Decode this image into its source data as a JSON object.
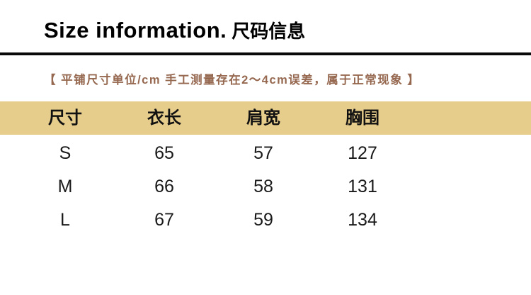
{
  "title": {
    "en": "Size information.",
    "zh": "尺码信息"
  },
  "note": "【 平铺尺寸单位/cm 手工测量存在2～4cm误差，属于正常现象 】",
  "colors": {
    "header_bg": "#e7cd8c",
    "note_text": "#966850",
    "divider": "#0a0a0a"
  },
  "table": {
    "headers": [
      "尺寸",
      "衣长",
      "肩宽",
      "胸围"
    ],
    "rows": [
      {
        "size": "S",
        "length": "65",
        "shoulder": "57",
        "bust": "127"
      },
      {
        "size": "M",
        "length": "66",
        "shoulder": "58",
        "bust": "131"
      },
      {
        "size": "L",
        "length": "67",
        "shoulder": "59",
        "bust": "134"
      }
    ]
  },
  "chart_data": {
    "type": "table",
    "title": "Size information. 尺码信息",
    "note": "平铺尺寸单位/cm 手工测量存在2～4cm误差，属于正常现象",
    "columns": [
      "尺寸",
      "衣长",
      "肩宽",
      "胸围"
    ],
    "rows": [
      [
        "S",
        65,
        57,
        127
      ],
      [
        "M",
        66,
        58,
        131
      ],
      [
        "L",
        67,
        59,
        134
      ]
    ],
    "unit": "cm"
  }
}
